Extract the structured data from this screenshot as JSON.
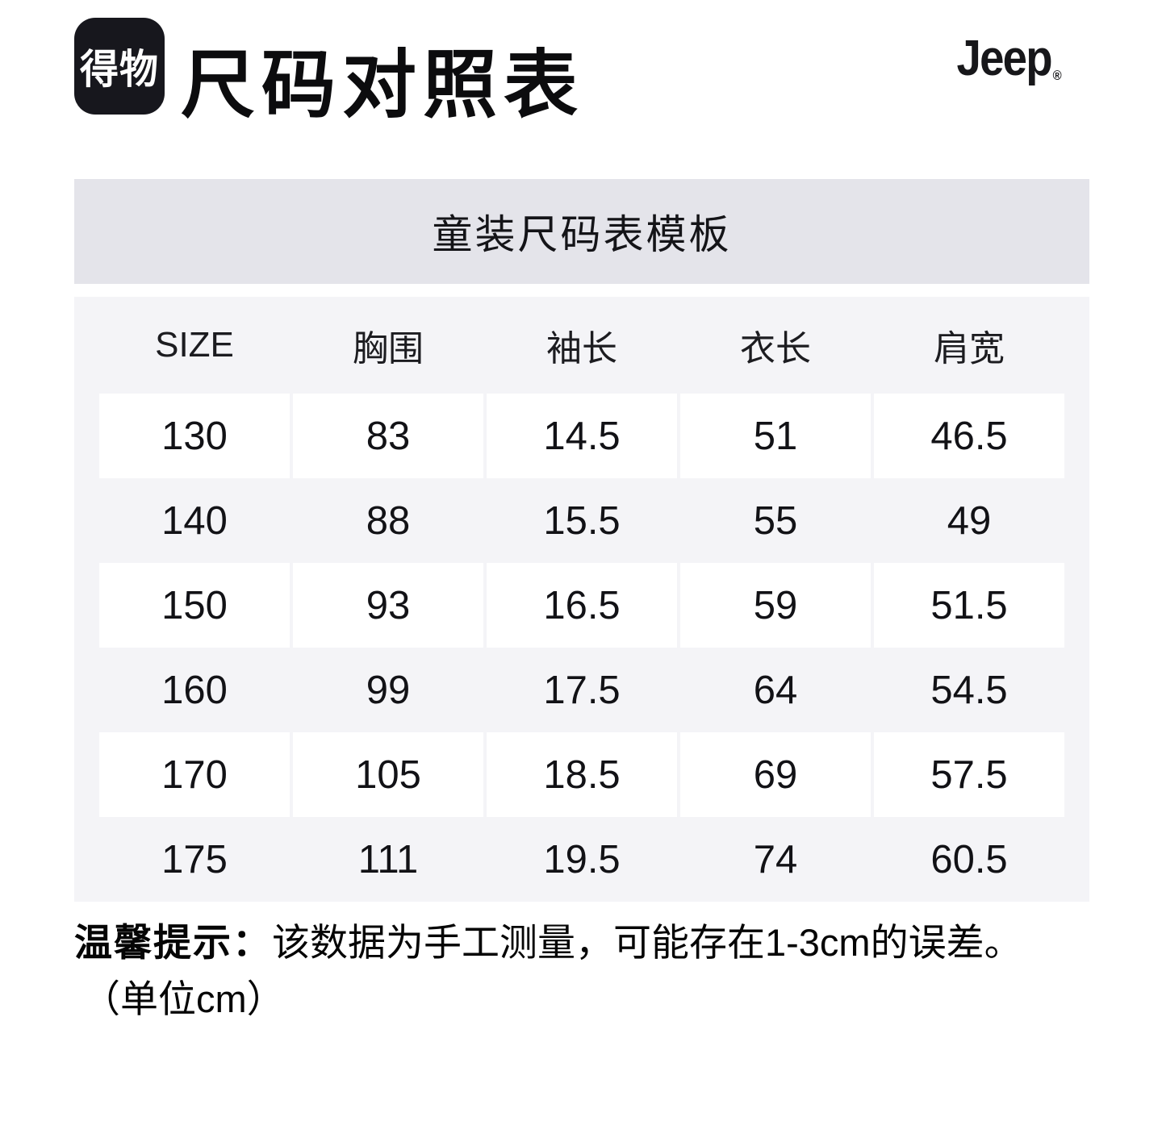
{
  "header": {
    "app_logo_text": "得物",
    "title": "尺码对照表",
    "brand_logo_text": "Jeep",
    "brand_reg_mark": "®"
  },
  "sheet": {
    "banner_title": "童装尺码表模板",
    "columns": [
      "SIZE",
      "胸围",
      "袖长",
      "衣长",
      "肩宽"
    ],
    "rows": [
      [
        "130",
        "83",
        "14.5",
        "51",
        "46.5"
      ],
      [
        "140",
        "88",
        "15.5",
        "55",
        "49"
      ],
      [
        "150",
        "93",
        "16.5",
        "59",
        "51.5"
      ],
      [
        "160",
        "99",
        "17.5",
        "64",
        "54.5"
      ],
      [
        "170",
        "105",
        "18.5",
        "69",
        "57.5"
      ],
      [
        "175",
        "111",
        "19.5",
        "74",
        "60.5"
      ]
    ]
  },
  "note": {
    "label": "温馨提示：",
    "text": "该数据为手工测量，可能存在1-3cm的误差。",
    "unit": "（单位cm）"
  },
  "colors": {
    "logo_bg": "#17171d",
    "band_bg": "#e4e4ea",
    "table_bg": "#f4f4f7",
    "cell_bg": "#ffffff",
    "ink": "#121214"
  }
}
